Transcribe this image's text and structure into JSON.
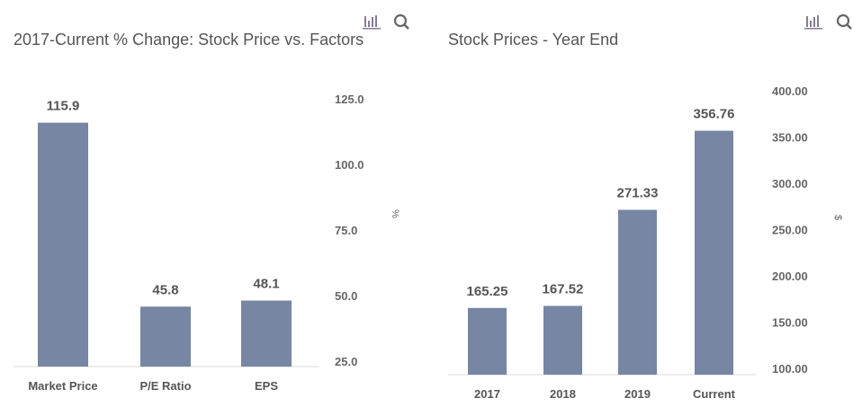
{
  "icons": {
    "chart_icon": "bar-chart-icon",
    "search_icon": "search-icon"
  },
  "colors": {
    "bar": "#7686a3",
    "text": "#555555",
    "axis": "#d8d8d8"
  },
  "chart_data": [
    {
      "type": "bar",
      "title": "2017-Current % Change: Stock Price vs. Factors",
      "categories": [
        "Market Price",
        "P/E Ratio",
        "EPS"
      ],
      "values": [
        115.9,
        45.8,
        48.1
      ],
      "value_labels": [
        "115.9",
        "45.8",
        "48.1"
      ],
      "ylabel": "%",
      "ylim": [
        23,
        125
      ],
      "yticks": [
        25,
        50,
        75,
        100,
        125
      ],
      "ytick_labels": [
        "25.0",
        "50.0",
        "75.0",
        "100.0",
        "125.0"
      ],
      "grid": false,
      "y_axis_side": "right"
    },
    {
      "type": "bar",
      "title": "Stock Prices - Year End",
      "categories": [
        "2017",
        "2018",
        "2019",
        "Current"
      ],
      "values": [
        165.25,
        167.52,
        271.33,
        356.76
      ],
      "value_labels": [
        "165.25",
        "167.52",
        "271.33",
        "356.76"
      ],
      "ylabel": "$",
      "ylim": [
        93,
        400
      ],
      "yticks": [
        100,
        150,
        200,
        250,
        300,
        350,
        400
      ],
      "ytick_labels": [
        "100.00",
        "150.00",
        "200.00",
        "250.00",
        "300.00",
        "350.00",
        "400.00"
      ],
      "grid": false,
      "y_axis_side": "right"
    }
  ]
}
